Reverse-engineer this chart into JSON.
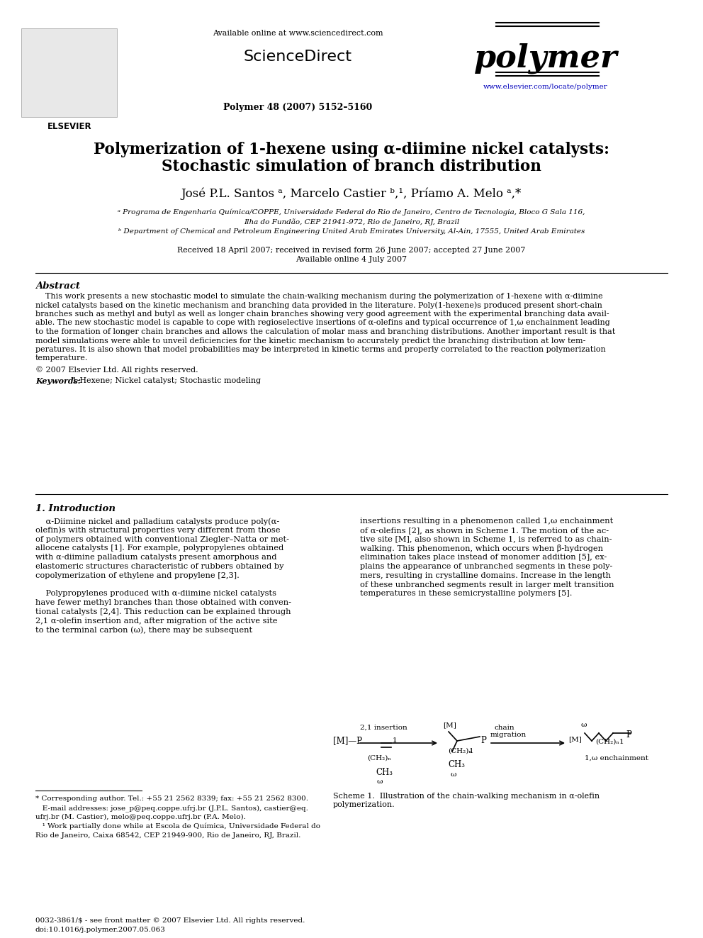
{
  "page_bg": "#ffffff",
  "header": {
    "available_online": "Available online at www.sciencedirect.com",
    "journal_name": "polymer",
    "journal_info": "Polymer 48 (2007) 5152–5160",
    "website": "www.elsevier.com/locate/polymer"
  },
  "title_line1": "Polymerization of 1-hexene using α-diimine nickel catalysts:",
  "title_line2": "Stochastic simulation of branch distribution",
  "authors": "José P.L. Santos ᵃ, Marcelo Castier ᵇ,¹, Príamo A. Melo ᵃ,*",
  "affil_a": "ᵃ Programa de Engenharia Química/COPPE, Universidade Federal do Rio de Janeiro, Centro de Tecnologia, Bloco G Sala 116,",
  "affil_a2": "Ilha do Fundão, CEP 21941-972, Rio de Janeiro, RJ, Brazil",
  "affil_b": "ᵇ Department of Chemical and Petroleum Engineering United Arab Emirates University, Al-Ain, 17555, United Arab Emirates",
  "received": "Received 18 April 2007; received in revised form 26 June 2007; accepted 27 June 2007",
  "available": "Available online 4 July 2007",
  "abstract_title": "Abstract",
  "abstract_indent": "    This work presents a new stochastic model to simulate the chain-walking mechanism during the polymerization of 1-hexene with α-diimine",
  "abstract_lines": [
    "    This work presents a new stochastic model to simulate the chain-walking mechanism during the polymerization of 1-hexene with α-diimine",
    "nickel catalysts based on the kinetic mechanism and branching data provided in the literature. Poly(1-hexene)s produced present short-chain",
    "branches such as methyl and butyl as well as longer chain branches showing very good agreement with the experimental branching data avail-",
    "able. The new stochastic model is capable to cope with regioselective insertions of α-olefins and typical occurrence of 1,ω enchainment leading",
    "to the formation of longer chain branches and allows the calculation of molar mass and branching distributions. Another important result is that",
    "model simulations were able to unveil deficiencies for the kinetic mechanism to accurately predict the branching distribution at low tem-",
    "peratures. It is also shown that model probabilities may be interpreted in kinetic terms and properly correlated to the reaction polymerization",
    "temperature."
  ],
  "copyright": "© 2007 Elsevier Ltd. All rights reserved.",
  "keywords_label": "Keywords:",
  "keywords": " 1-Hexene; Nickel catalyst; Stochastic modeling",
  "section1_title": "1. Introduction",
  "intro_col1_lines": [
    "    α-Diimine nickel and palladium catalysts produce poly(α-",
    "olefin)s with structural properties very different from those",
    "of polymers obtained with conventional Ziegler–Natta or met-",
    "allocene catalysts [1]. For example, polypropylenes obtained",
    "with α-diimine palladium catalysts present amorphous and",
    "elastomeric structures characteristic of rubbers obtained by",
    "copolymerization of ethylene and propylene [2,3].",
    "",
    "    Polypropylenes produced with α-diimine nickel catalysts",
    "have fewer methyl branches than those obtained with conven-",
    "tional catalysts [2,4]. This reduction can be explained through",
    "2,1 α-olefin insertion and, after migration of the active site",
    "to the terminal carbon (ω), there may be subsequent"
  ],
  "intro_col2_lines": [
    "insertions resulting in a phenomenon called 1,ω enchainment",
    "of α-olefins [2], as shown in Scheme 1. The motion of the ac-",
    "tive site [M], also shown in Scheme 1, is referred to as chain-",
    "walking. This phenomenon, which occurs when β-hydrogen",
    "elimination takes place instead of monomer addition [5], ex-",
    "plains the appearance of unbranched segments in these poly-",
    "mers, resulting in crystalline domains. Increase in the length",
    "of these unbranched segments result in larger melt transition",
    "temperatures in these semicrystalline polymers [5]."
  ],
  "footnote_star": "* Corresponding author. Tel.: +55 21 2562 8339; fax: +55 21 2562 8300.",
  "footnote_email1": "   E-mail addresses: jose_p@peq.coppe.ufrj.br (J.P.L. Santos), castier@eq.",
  "footnote_email2": "ufrj.br (M. Castier), melo@peq.coppe.ufrj.br (P.A. Melo).",
  "footnote_1a": "   ¹ Work partially done while at Escola de Química, Universidade Federal do",
  "footnote_1b": "Rio de Janeiro, Caixa 68542, CEP 21949-900, Rio de Janeiro, RJ, Brazil.",
  "footer_left1": "0032-3861/$ - see front matter © 2007 Elsevier Ltd. All rights reserved.",
  "footer_left2": "doi:10.1016/j.polymer.2007.05.063",
  "scheme_caption1": "Scheme 1.  Illustration of the chain-walking mechanism in α-olefin",
  "scheme_caption2": "polymerization.",
  "link_color": "#0000bb",
  "text_color": "#000000",
  "elsevier_text": "ELSEVIER"
}
